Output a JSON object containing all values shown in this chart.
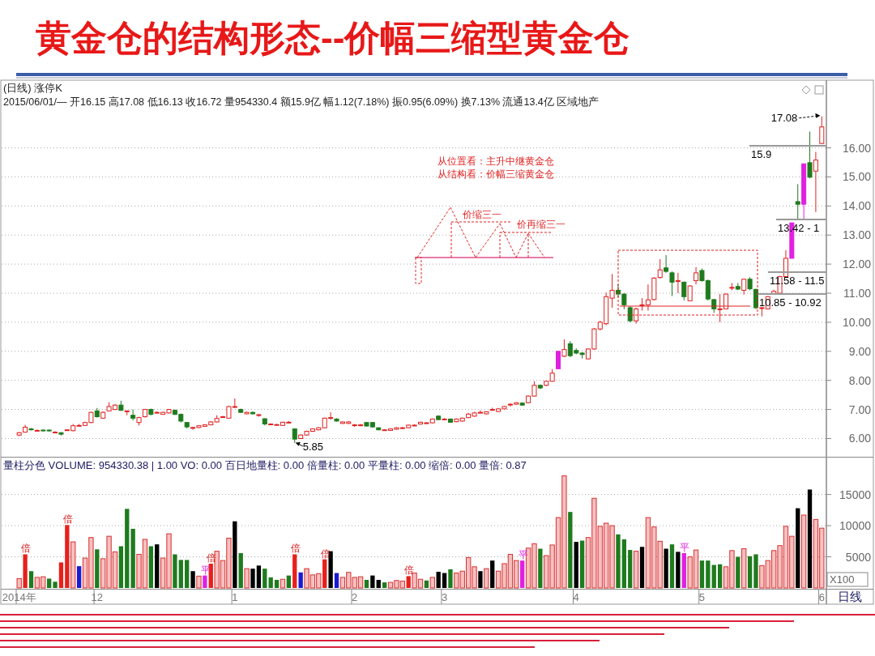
{
  "chart_data": [
    {
      "type": "candlestick",
      "title": "黄金仓的结构形态--价幅三缩型黄金仓",
      "categories": [
        null,
        null,
        null,
        null,
        null,
        null,
        null,
        null,
        null,
        null,
        null,
        null,
        null,
        null,
        null,
        null,
        null,
        null,
        null,
        null,
        null,
        null,
        null,
        null,
        null,
        null,
        null,
        null,
        null,
        null,
        null,
        null,
        null,
        null,
        null,
        null,
        null,
        null,
        null,
        null,
        null,
        null,
        null,
        null,
        null,
        null,
        null,
        null,
        null,
        null,
        null,
        null,
        null,
        null,
        null,
        null,
        null,
        null,
        null,
        null,
        null,
        null,
        null,
        null,
        null,
        null,
        null,
        null,
        null,
        null,
        null,
        null,
        null,
        null,
        null,
        null,
        null,
        null,
        null,
        null,
        null,
        null,
        null,
        null,
        null,
        null,
        null,
        null,
        null,
        null,
        null,
        null,
        null,
        null,
        null,
        null,
        null,
        null,
        null,
        null,
        null,
        null,
        null,
        null,
        null,
        null,
        null,
        null,
        null,
        null,
        null,
        null,
        null,
        null,
        null,
        null,
        null,
        null,
        null,
        null,
        null,
        null,
        null,
        null,
        null,
        null,
        null,
        null,
        null,
        null,
        null,
        null,
        null,
        null,
        null
      ],
      "ohlc": [
        [
          6.12,
          6.22,
          6.08,
          6.2
        ],
        [
          6.22,
          6.47,
          6.2,
          6.39
        ],
        [
          6.33,
          6.36,
          6.28,
          6.3
        ],
        [
          6.28,
          6.31,
          6.26,
          6.28
        ],
        [
          6.29,
          6.31,
          6.25,
          6.28
        ],
        [
          6.29,
          6.31,
          6.24,
          6.27
        ],
        [
          6.22,
          6.25,
          6.19,
          6.22
        ],
        [
          6.2,
          6.22,
          6.1,
          6.15
        ],
        [
          6.29,
          6.32,
          6.27,
          6.3
        ],
        [
          6.27,
          6.5,
          6.25,
          6.44
        ],
        [
          6.45,
          6.5,
          6.43,
          6.45
        ],
        [
          6.45,
          6.58,
          6.44,
          6.55
        ],
        [
          6.55,
          6.92,
          6.53,
          6.9
        ],
        [
          6.95,
          7.05,
          6.72,
          6.75
        ],
        [
          6.7,
          6.93,
          6.68,
          6.9
        ],
        [
          6.95,
          7.25,
          6.93,
          7.1
        ],
        [
          7.0,
          7.18,
          6.98,
          7.15
        ],
        [
          7.15,
          7.3,
          6.95,
          6.97
        ],
        [
          6.95,
          6.97,
          6.8,
          6.95
        ],
        [
          6.8,
          7.0,
          6.62,
          6.7
        ],
        [
          6.55,
          6.75,
          6.45,
          6.72
        ],
        [
          6.75,
          7.02,
          6.72,
          7.0
        ],
        [
          7.0,
          7.03,
          6.8,
          6.83
        ],
        [
          6.9,
          6.93,
          6.87,
          6.9
        ],
        [
          6.83,
          6.92,
          6.82,
          6.9
        ],
        [
          6.88,
          7.02,
          6.86,
          7.0
        ],
        [
          6.97,
          7.0,
          6.81,
          6.83
        ],
        [
          6.83,
          6.86,
          6.55,
          6.6
        ],
        [
          6.55,
          6.57,
          6.35,
          6.4
        ],
        [
          6.38,
          6.4,
          6.3,
          6.38
        ],
        [
          6.38,
          6.46,
          6.36,
          6.44
        ],
        [
          6.42,
          6.49,
          6.41,
          6.47
        ],
        [
          6.47,
          6.6,
          6.46,
          6.57
        ],
        [
          6.57,
          6.8,
          6.55,
          6.69
        ],
        [
          6.75,
          6.78,
          6.72,
          6.75
        ],
        [
          6.7,
          7.12,
          6.68,
          7.1
        ],
        [
          7.1,
          7.38,
          7.05,
          7.1
        ],
        [
          7.0,
          7.03,
          6.88,
          6.9
        ],
        [
          6.85,
          6.92,
          6.84,
          6.9
        ],
        [
          6.9,
          6.93,
          6.83,
          6.85
        ],
        [
          6.82,
          6.84,
          6.75,
          6.82
        ],
        [
          6.68,
          6.7,
          6.45,
          6.5
        ],
        [
          6.5,
          6.52,
          6.47,
          6.5
        ],
        [
          6.48,
          6.5,
          6.45,
          6.48
        ],
        [
          6.45,
          6.58,
          6.44,
          6.56
        ],
        [
          6.56,
          6.6,
          6.54,
          6.56
        ],
        [
          6.33,
          6.35,
          5.85,
          5.98
        ],
        [
          6.0,
          6.14,
          5.98,
          6.12
        ],
        [
          6.12,
          6.27,
          6.1,
          6.25
        ],
        [
          6.25,
          6.35,
          6.23,
          6.33
        ],
        [
          6.3,
          6.39,
          6.28,
          6.37
        ],
        [
          6.37,
          6.72,
          6.35,
          6.7
        ],
        [
          6.72,
          6.9,
          6.65,
          6.72
        ],
        [
          6.67,
          6.7,
          6.58,
          6.6
        ],
        [
          6.52,
          6.59,
          6.5,
          6.57
        ],
        [
          6.52,
          6.6,
          6.5,
          6.57
        ],
        [
          6.47,
          6.5,
          6.4,
          6.47
        ],
        [
          6.47,
          6.5,
          6.42,
          6.47
        ],
        [
          6.55,
          6.57,
          6.41,
          6.43
        ],
        [
          6.55,
          6.57,
          6.38,
          6.4
        ],
        [
          6.37,
          6.39,
          6.28,
          6.3
        ],
        [
          6.3,
          6.32,
          6.27,
          6.3
        ],
        [
          6.28,
          6.35,
          6.26,
          6.33
        ],
        [
          6.32,
          6.39,
          6.3,
          6.37
        ],
        [
          6.37,
          6.4,
          6.33,
          6.37
        ],
        [
          6.37,
          6.48,
          6.35,
          6.46
        ],
        [
          6.46,
          6.49,
          6.43,
          6.46
        ],
        [
          6.5,
          6.58,
          6.48,
          6.56
        ],
        [
          6.54,
          6.57,
          6.51,
          6.54
        ],
        [
          6.54,
          6.69,
          6.52,
          6.67
        ],
        [
          6.77,
          6.8,
          6.63,
          6.65
        ],
        [
          6.67,
          6.7,
          6.64,
          6.67
        ],
        [
          6.67,
          6.69,
          6.54,
          6.56
        ],
        [
          6.58,
          6.69,
          6.56,
          6.67
        ],
        [
          6.6,
          6.72,
          6.58,
          6.7
        ],
        [
          6.72,
          6.88,
          6.7,
          6.84
        ],
        [
          6.77,
          6.92,
          6.75,
          6.88
        ],
        [
          6.9,
          6.97,
          6.87,
          6.9
        ],
        [
          6.85,
          6.94,
          6.83,
          6.92
        ],
        [
          7.0,
          7.06,
          6.97,
          7.0
        ],
        [
          6.93,
          7.04,
          6.91,
          7.02
        ],
        [
          7.02,
          7.12,
          7.0,
          7.1
        ],
        [
          7.18,
          7.21,
          7.1,
          7.18
        ],
        [
          7.18,
          7.25,
          7.16,
          7.23
        ],
        [
          7.22,
          7.24,
          7.12,
          7.15
        ],
        [
          7.23,
          7.48,
          7.21,
          7.46
        ],
        [
          7.46,
          7.97,
          7.44,
          7.83
        ],
        [
          7.83,
          7.86,
          7.7,
          7.74
        ],
        [
          7.83,
          7.99,
          7.8,
          7.97
        ],
        [
          7.97,
          8.39,
          7.95,
          8.25
        ],
        [
          8.4,
          9.0,
          8.39,
          9.0
        ],
        [
          8.83,
          9.41,
          8.8,
          9.06
        ],
        [
          9.26,
          9.35,
          8.8,
          8.85
        ],
        [
          9.03,
          9.1,
          8.9,
          8.94
        ],
        [
          8.94,
          8.97,
          8.75,
          8.89
        ],
        [
          8.74,
          9.1,
          8.72,
          9.08
        ],
        [
          9.08,
          9.8,
          9.05,
          9.77
        ],
        [
          9.77,
          10.05,
          9.72,
          10.0
        ],
        [
          9.95,
          11.02,
          9.9,
          10.88
        ],
        [
          10.83,
          11.66,
          10.5,
          11.1
        ],
        [
          11.1,
          11.3,
          10.85,
          10.97
        ],
        [
          10.97,
          11.0,
          10.45,
          10.6
        ],
        [
          10.5,
          10.55,
          10.0,
          10.05
        ],
        [
          10.05,
          10.5,
          9.95,
          10.46
        ],
        [
          10.6,
          10.83,
          10.4,
          10.6
        ],
        [
          10.6,
          11.3,
          10.4,
          10.77
        ],
        [
          10.78,
          11.55,
          10.75,
          11.52
        ],
        [
          11.54,
          12.17,
          11.5,
          11.8
        ],
        [
          11.87,
          12.31,
          11.7,
          11.75
        ],
        [
          11.7,
          11.75,
          10.9,
          11.38
        ],
        [
          11.43,
          11.7,
          11.0,
          11.43
        ],
        [
          11.38,
          11.4,
          10.75,
          10.88
        ],
        [
          10.74,
          11.27,
          10.72,
          11.25
        ],
        [
          11.43,
          11.9,
          11.3,
          11.7
        ],
        [
          11.78,
          11.85,
          11.4,
          11.43
        ],
        [
          11.43,
          11.47,
          10.75,
          10.8
        ],
        [
          10.78,
          10.8,
          10.32,
          10.46
        ],
        [
          10.46,
          10.97,
          10.0,
          10.46
        ],
        [
          10.46,
          10.99,
          10.45,
          10.97
        ],
        [
          11.2,
          11.35,
          11.1,
          11.2
        ],
        [
          11.23,
          11.35,
          11.1,
          11.14
        ],
        [
          11.1,
          11.5,
          10.95,
          11.48
        ],
        [
          11.48,
          11.55,
          11.1,
          11.15
        ],
        [
          11.13,
          11.15,
          10.45,
          10.5
        ],
        [
          10.5,
          10.53,
          10.2,
          10.5
        ],
        [
          10.46,
          10.9,
          10.44,
          10.88
        ],
        [
          10.97,
          11.12,
          10.95,
          11.06
        ],
        [
          11.0,
          11.6,
          10.97,
          11.57
        ],
        [
          11.57,
          12.48,
          11.55,
          12.2
        ],
        [
          12.2,
          13.42,
          12.2,
          13.42
        ],
        [
          14.15,
          14.75,
          13.55,
          14.06
        ],
        [
          14.06,
          15.45,
          13.55,
          15.45
        ],
        [
          15.49,
          16.56,
          14.95,
          14.99
        ],
        [
          15.2,
          15.86,
          13.79,
          15.58
        ],
        [
          16.15,
          17.08,
          16.13,
          16.72
        ]
      ],
      "colors": [
        "#e02020",
        "#e02020",
        "#1e7b1e",
        "#e02020",
        "#1e7b1e",
        "#1e7b1e",
        "#e02020",
        "#1e7b1e",
        "#e02020",
        "#e02020",
        "#e02020",
        "#e02020",
        "#e02020",
        "#1e7b1e",
        "#e02020",
        "#e02020",
        "#e02020",
        "#1e7b1e",
        "#e02020",
        "#1e7b1e",
        "#e02020",
        "#e02020",
        "#1e7b1e",
        "#e02020",
        "#e02020",
        "#e02020",
        "#1e7b1e",
        "#1e7b1e",
        "#1e7b1e",
        "#e02020",
        "#e02020",
        "#e02020",
        "#e02020",
        "#e02020",
        "#e02020",
        "#e02020",
        "#e02020",
        "#1e7b1e",
        "#e02020",
        "#1e7b1e",
        "#e02020",
        "#1e7b1e",
        "#e02020",
        "#e02020",
        "#e02020",
        "#e02020",
        "#1e7b1e",
        "#e02020",
        "#e02020",
        "#e02020",
        "#e02020",
        "#e02020",
        "#e02020",
        "#1e7b1e",
        "#e02020",
        "#e02020",
        "#e02020",
        "#e02020",
        "#1e7b1e",
        "#1e7b1e",
        "#1e7b1e",
        "#e02020",
        "#e02020",
        "#e02020",
        "#e02020",
        "#e02020",
        "#e02020",
        "#e02020",
        "#e02020",
        "#e02020",
        "#1e7b1e",
        "#e02020",
        "#1e7b1e",
        "#e02020",
        "#e02020",
        "#e02020",
        "#e02020",
        "#e02020",
        "#e02020",
        "#e02020",
        "#e02020",
        "#e02020",
        "#e02020",
        "#e02020",
        "#1e7b1e",
        "#e02020",
        "#e02020",
        "#1e7b1e",
        "#e02020",
        "#e02020",
        "#e020e0",
        "#e02020",
        "#1e7b1e",
        "#1e7b1e",
        "#1e7b1e",
        "#e02020",
        "#e02020",
        "#e02020",
        "#e02020",
        "#e02020",
        "#1e7b1e",
        "#1e7b1e",
        "#1e7b1e",
        "#e02020",
        "#e02020",
        "#e02020",
        "#e02020",
        "#e02020",
        "#1e7b1e",
        "#1e7b1e",
        "#e02020",
        "#1e7b1e",
        "#e02020",
        "#e02020",
        "#1e7b1e",
        "#1e7b1e",
        "#1e7b1e",
        "#e02020",
        "#e02020",
        "#e02020",
        "#1e7b1e",
        "#e02020",
        "#1e7b1e",
        "#1e7b1e",
        "#e02020",
        "#e02020",
        "#e02020",
        "#e02020",
        "#e02020",
        "#e020e0",
        "#1e7b1e",
        "#e020e0",
        "#1e7b1e",
        "#e02020",
        "#e02020"
      ],
      "ylim": [
        5.4,
        18.3
      ],
      "yticks": [
        {
          "value": 6,
          "label": "6.00"
        },
        {
          "value": 7,
          "label": "7.00"
        },
        {
          "value": 8,
          "label": "8.00"
        },
        {
          "value": 9,
          "label": "9.00"
        },
        {
          "value": 10,
          "label": "10.00"
        },
        {
          "value": 11,
          "label": "11.00"
        },
        {
          "value": 12,
          "label": "12.00"
        },
        {
          "value": 13,
          "label": "13.00"
        },
        {
          "value": 14,
          "label": "14.00"
        },
        {
          "value": 15,
          "label": "15.00"
        },
        {
          "value": 16,
          "label": "16.00"
        }
      ],
      "grid": "y",
      "tick_labels": "y",
      "annotations": [
        "(日线) 涨停K",
        "2015/06/01/— 开16.15 高17.08 低16.13 收16.72 量954330.4 额15.9亿 幅1.12(7.18%) 振0.95(6.09%) 换7.13% 流通13.4亿 区域地产",
        "从位置看：主升中继黄金仓",
        "从结构看：价幅三缩黄金仓",
        "价缩三一",
        "价再缩三一",
        "17.08",
        "5.85",
        "15.9",
        "13.42 - 1",
        "11.58 - 11.5",
        "10.85 - 10.92"
      ]
    },
    {
      "type": "bar",
      "categories": [
        "2014年",
        null,
        null,
        null,
        null,
        null,
        null,
        null,
        null,
        null,
        null,
        null,
        null,
        "12",
        null,
        null,
        null,
        null,
        null,
        null,
        null,
        null,
        null,
        null,
        null,
        null,
        null,
        null,
        null,
        null,
        null,
        null,
        null,
        null,
        null,
        null,
        "1",
        null,
        null,
        null,
        null,
        null,
        null,
        null,
        null,
        null,
        null,
        null,
        null,
        null,
        null,
        null,
        null,
        null,
        null,
        null,
        "2",
        null,
        null,
        null,
        null,
        null,
        null,
        null,
        null,
        null,
        null,
        null,
        null,
        null,
        null,
        "3",
        null,
        null,
        null,
        null,
        null,
        null,
        null,
        null,
        null,
        null,
        null,
        null,
        null,
        null,
        null,
        null,
        null,
        null,
        null,
        null,
        null,
        "4",
        null,
        null,
        null,
        null,
        null,
        null,
        null,
        null,
        null,
        null,
        null,
        null,
        null,
        null,
        null,
        null,
        null,
        null,
        null,
        null,
        "5",
        null,
        null,
        null,
        null,
        null,
        null,
        null,
        null,
        null,
        null,
        null,
        null,
        null,
        null,
        null,
        null,
        null,
        null,
        null,
        "6"
      ],
      "values": [
        1500,
        5400,
        2700,
        1700,
        1800,
        1500,
        1000,
        4100,
        10100,
        7400,
        3500,
        4800,
        8100,
        6200,
        4700,
        8300,
        5800,
        6700,
        12700,
        9500,
        5400,
        7800,
        6700,
        7000,
        4800,
        8700,
        5400,
        4500,
        4500,
        2700,
        1900,
        2000,
        3900,
        5900,
        4400,
        8000,
        10700,
        5600,
        3100,
        3100,
        3600,
        3100,
        1700,
        1300,
        1400,
        2000,
        5400,
        2500,
        3100,
        2100,
        2300,
        4600,
        5900,
        2400,
        1700,
        2500,
        1700,
        1800,
        1300,
        2000,
        1300,
        900,
        900,
        1200,
        1100,
        1900,
        2400,
        1400,
        1200,
        1700,
        2600,
        2400,
        3000,
        2400,
        2700,
        4900,
        3400,
        2700,
        3100,
        4400,
        2700,
        3900,
        5400,
        4400,
        4400,
        6400,
        7100,
        6300,
        5200,
        6900,
        11300,
        18000,
        12200,
        7400,
        7600,
        8100,
        14400,
        9900,
        10400,
        10000,
        8600,
        7800,
        6100,
        5900,
        6600,
        11300,
        9800,
        7500,
        6300,
        7000,
        5800,
        5600,
        5000,
        6100,
        4400,
        4400,
        3700,
        3800,
        3400,
        6000,
        5000,
        6300,
        5100,
        5400,
        3600,
        4400,
        6000,
        6800,
        9900,
        8300,
        12800,
        11700,
        15800,
        11000,
        9600
      ],
      "colors": [
        "#f6c0c0",
        "#e8201c",
        "#1e7b1e",
        "#f6c0c0",
        "#f6c0c0",
        "#1e7b1e",
        "#1e7b1e",
        "#e8201c",
        "#e8201c",
        "#f6c0c0",
        "#1a1ad0",
        "#f6c0c0",
        "#f6c0c0",
        "#1e7b1e",
        "#f6c0c0",
        "#f6c0c0",
        "#f6c0c0",
        "#1e7b1e",
        "#1e7b1e",
        "#1e7b1e",
        "#f6c0c0",
        "#f6c0c0",
        "#1e7b1e",
        "#000000",
        "#f6c0c0",
        "#f6c0c0",
        "#1e7b1e",
        "#1e7b1e",
        "#1e7b1e",
        "#000000",
        "#f6c0c0",
        "#e020e0",
        "#e8201c",
        "#f6c0c0",
        "#f6c0c0",
        "#f6c0c0",
        "#000000",
        "#1e7b1e",
        "#f6c0c0",
        "#000000",
        "#000000",
        "#1e7b1e",
        "#1e7b1e",
        "#1e7b1e",
        "#f6c0c0",
        "#1e7b1e",
        "#e8201c",
        "#1a1ad0",
        "#f6c0c0",
        "#f6c0c0",
        "#f6c0c0",
        "#e8201c",
        "#000000",
        "#1a1ad0",
        "#f6c0c0",
        "#f6c0c0",
        "#f6c0c0",
        "#f6c0c0",
        "#1e7b1e",
        "#000000",
        "#000000",
        "#1e7b1e",
        "#f6c0c0",
        "#f6c0c0",
        "#f6c0c0",
        "#e8201c",
        "#f6c0c0",
        "#f6c0c0",
        "#1e7b1e",
        "#f6c0c0",
        "#000000",
        "#000000",
        "#1e7b1e",
        "#f6c0c0",
        "#f6c0c0",
        "#f6c0c0",
        "#f6c0c0",
        "#000000",
        "#f6c0c0",
        "#000000",
        "#f6c0c0",
        "#f6c0c0",
        "#f6c0c0",
        "#f6c0c0",
        "#e020e0",
        "#f6c0c0",
        "#f6c0c0",
        "#1e7b1e",
        "#f6c0c0",
        "#f6c0c0",
        "#f6c0c0",
        "#f6c0c0",
        "#1e7b1e",
        "#000000",
        "#1e7b1e",
        "#f6c0c0",
        "#f6c0c0",
        "#f6c0c0",
        "#f6c0c0",
        "#f6c0c0",
        "#1e7b1e",
        "#1e7b1e",
        "#1e7b1e",
        "#f6c0c0",
        "#000000",
        "#f6c0c0",
        "#f6c0c0",
        "#f6c0c0",
        "#000000",
        "#1e7b1e",
        "#000000",
        "#e020e0",
        "#f6c0c0",
        "#f6c0c0",
        "#1e7b1e",
        "#1e7b1e",
        "#1e7b1e",
        "#1e7b1e",
        "#f6c0c0",
        "#f6c0c0",
        "#1e7b1e",
        "#f6c0c0",
        "#1e7b1e",
        "#1e7b1e",
        "#f6c0c0",
        "#f6c0c0",
        "#f6c0c0",
        "#f6c0c0",
        "#f6c0c0",
        "#f6c0c0",
        "#000000",
        "#f6c0c0",
        "#000000",
        "#f6c0c0",
        "#f6c0c0"
      ],
      "value_labels": [
        null,
        "倍",
        null,
        null,
        null,
        null,
        null,
        null,
        "倍",
        null,
        null,
        null,
        null,
        null,
        null,
        null,
        null,
        null,
        null,
        null,
        null,
        null,
        null,
        null,
        null,
        null,
        null,
        null,
        null,
        null,
        null,
        "平",
        "倍",
        null,
        null,
        null,
        null,
        null,
        null,
        null,
        null,
        null,
        null,
        null,
        null,
        null,
        "倍",
        null,
        null,
        null,
        null,
        "倍",
        null,
        null,
        null,
        null,
        null,
        null,
        null,
        null,
        null,
        null,
        null,
        null,
        null,
        "倍",
        null,
        null,
        null,
        null,
        null,
        null,
        null,
        null,
        null,
        null,
        null,
        null,
        null,
        null,
        null,
        null,
        null,
        null,
        "平",
        null,
        null,
        null,
        null,
        null,
        null,
        null,
        null,
        null,
        null,
        null,
        null,
        null,
        null,
        null,
        null,
        null,
        null,
        null,
        null,
        null,
        null,
        null,
        null,
        null,
        null,
        "平",
        null,
        null,
        null,
        null,
        null,
        null,
        null,
        null,
        null,
        null,
        null,
        null,
        null,
        null,
        null,
        null,
        null,
        null,
        null,
        null,
        null,
        null,
        null
      ],
      "ylim": [
        0,
        20800
      ],
      "yticks": [
        5000,
        10000,
        15000
      ],
      "grid": "y",
      "annotations": [
        "量柱分色 VOLUME: 954330.38 | 1.00 VO: 0.00 百日地量柱: 0.00 倍量柱: 0.00 平量柱: 0.00 缩倍: 0.00 量倍: 0.87",
        "X100",
        "日线"
      ]
    }
  ]
}
